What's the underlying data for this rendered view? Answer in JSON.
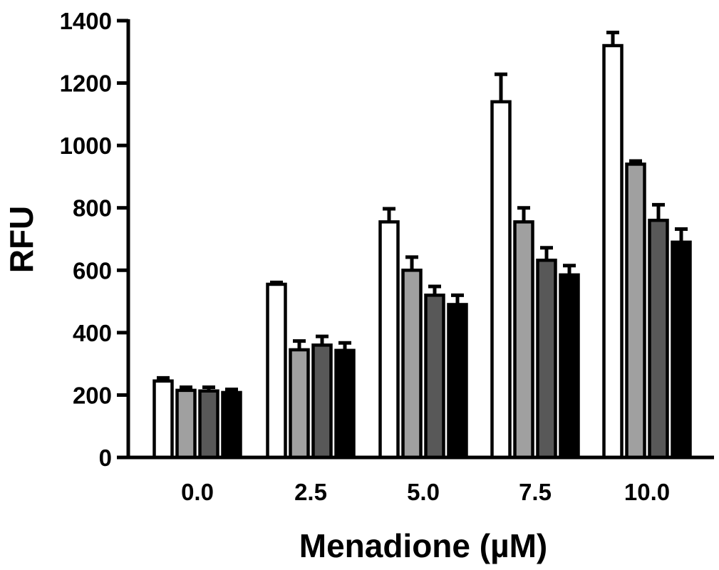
{
  "chart_data": {
    "type": "bar",
    "title": "",
    "xlabel": "Menadione (µM)",
    "ylabel": "RFU",
    "categories": [
      "0.0",
      "2.5",
      "5.0",
      "7.5",
      "10.0"
    ],
    "ylim": [
      0,
      1400
    ],
    "yticks": [
      0,
      200,
      400,
      600,
      800,
      1000,
      1200,
      1400
    ],
    "grid": false,
    "legend": "none",
    "series": [
      {
        "color": "#ffffff",
        "values": [
          245,
          555,
          755,
          1140,
          1320
        ],
        "errors": [
          10,
          6,
          42,
          88,
          42
        ]
      },
      {
        "color": "#a0a0a0",
        "values": [
          215,
          345,
          600,
          755,
          940
        ],
        "errors": [
          10,
          28,
          42,
          45,
          10
        ]
      },
      {
        "color": "#585858",
        "values": [
          213,
          360,
          520,
          632,
          760
        ],
        "errors": [
          12,
          28,
          28,
          40,
          50
        ]
      },
      {
        "color": "#000000",
        "values": [
          208,
          343,
          490,
          585,
          690
        ],
        "errors": [
          10,
          24,
          30,
          30,
          42
        ]
      }
    ]
  }
}
